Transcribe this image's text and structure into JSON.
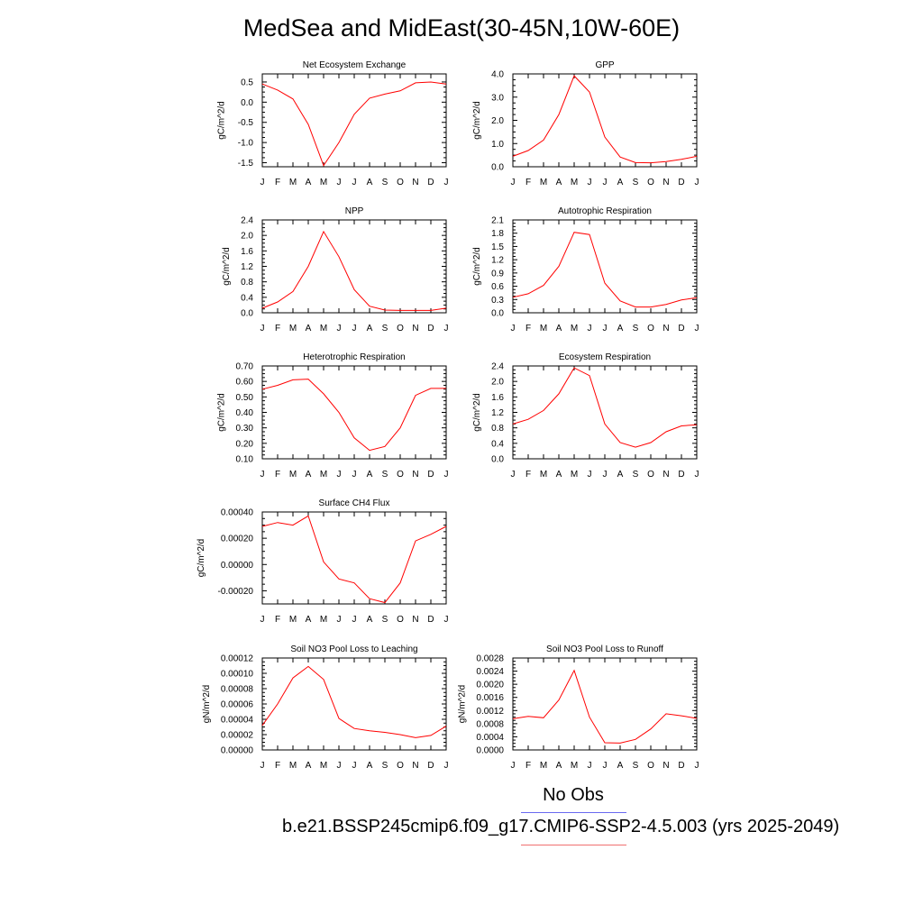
{
  "title": "MedSea and MidEast(30-45N,10W-60E)",
  "legend": {
    "obs_label": "No Obs",
    "obs_color": "#6a6af0",
    "model_label": "b.e21.BSSP245cmip6.f09_g17.CMIP6-SSP2-4.5.003 (yrs 2025-2049)",
    "model_color": "#f07070"
  },
  "chart_data": [
    {
      "type": "line",
      "title": "Net Ecosystem Exchange",
      "ylabel": "gC/m^2/d",
      "categories": [
        "J",
        "F",
        "M",
        "A",
        "M",
        "J",
        "J",
        "A",
        "S",
        "O",
        "N",
        "D",
        "J"
      ],
      "ylim": [
        -1.6,
        0.7
      ],
      "yticks": [
        -1.5,
        -1.0,
        -0.5,
        0.0,
        0.5
      ],
      "ytick_labels": [
        "-1.5",
        "-1.0",
        "-0.5",
        "0.0",
        "0.5"
      ],
      "series": [
        {
          "values": [
            0.45,
            0.3,
            0.08,
            -0.55,
            -1.57,
            -1.0,
            -0.3,
            0.1,
            0.2,
            0.28,
            0.48,
            0.5,
            0.45
          ],
          "color": "#ff0000"
        }
      ]
    },
    {
      "type": "line",
      "title": "GPP",
      "ylabel": "gC/m^2/d",
      "categories": [
        "J",
        "F",
        "M",
        "A",
        "M",
        "J",
        "J",
        "A",
        "S",
        "O",
        "N",
        "D",
        "J"
      ],
      "ylim": [
        0.0,
        4.0
      ],
      "yticks": [
        0.0,
        1.0,
        2.0,
        3.0,
        4.0
      ],
      "ytick_labels": [
        "0.0",
        "1.0",
        "2.0",
        "3.0",
        "4.0"
      ],
      "series": [
        {
          "values": [
            0.45,
            0.7,
            1.15,
            2.25,
            3.92,
            3.22,
            1.28,
            0.42,
            0.18,
            0.17,
            0.22,
            0.32,
            0.45
          ],
          "color": "#ff0000"
        }
      ]
    },
    {
      "type": "line",
      "title": "NPP",
      "ylabel": "gC/m^2/d",
      "categories": [
        "J",
        "F",
        "M",
        "A",
        "M",
        "J",
        "J",
        "A",
        "S",
        "O",
        "N",
        "D",
        "J"
      ],
      "ylim": [
        0.0,
        2.4
      ],
      "yticks": [
        0.0,
        0.4,
        0.8,
        1.2,
        1.6,
        2.0,
        2.4
      ],
      "ytick_labels": [
        "0.0",
        "0.4",
        "0.8",
        "1.2",
        "1.6",
        "2.0",
        "2.4"
      ],
      "series": [
        {
          "values": [
            0.12,
            0.28,
            0.55,
            1.2,
            2.1,
            1.45,
            0.6,
            0.17,
            0.07,
            0.06,
            0.06,
            0.06,
            0.12
          ],
          "color": "#ff0000"
        }
      ]
    },
    {
      "type": "line",
      "title": "Autotrophic Respiration",
      "ylabel": "gC/m^2/d",
      "categories": [
        "J",
        "F",
        "M",
        "A",
        "M",
        "J",
        "J",
        "A",
        "S",
        "O",
        "N",
        "D",
        "J"
      ],
      "ylim": [
        0.0,
        2.1
      ],
      "yticks": [
        0.0,
        0.3,
        0.6,
        0.9,
        1.2,
        1.5,
        1.8,
        2.1
      ],
      "ytick_labels": [
        "0.0",
        "0.3",
        "0.6",
        "0.9",
        "1.2",
        "1.5",
        "1.8",
        "2.1"
      ],
      "series": [
        {
          "values": [
            0.35,
            0.43,
            0.62,
            1.05,
            1.82,
            1.77,
            0.67,
            0.27,
            0.13,
            0.13,
            0.19,
            0.29,
            0.34
          ],
          "color": "#ff0000"
        }
      ]
    },
    {
      "type": "line",
      "title": "Heterotrophic Respiration",
      "ylabel": "gC/m^2/d",
      "categories": [
        "J",
        "F",
        "M",
        "A",
        "M",
        "J",
        "J",
        "A",
        "S",
        "O",
        "N",
        "D",
        "J"
      ],
      "ylim": [
        0.1,
        0.7
      ],
      "yticks": [
        0.1,
        0.2,
        0.3,
        0.4,
        0.5,
        0.6,
        0.7
      ],
      "ytick_labels": [
        "0.10",
        "0.20",
        "0.30",
        "0.40",
        "0.50",
        "0.60",
        "0.70"
      ],
      "series": [
        {
          "values": [
            0.55,
            0.575,
            0.61,
            0.615,
            0.52,
            0.4,
            0.235,
            0.155,
            0.18,
            0.3,
            0.51,
            0.555,
            0.555
          ],
          "color": "#ff0000"
        }
      ]
    },
    {
      "type": "line",
      "title": "Ecosystem Respiration",
      "ylabel": "gC/m^2/d",
      "categories": [
        "J",
        "F",
        "M",
        "A",
        "M",
        "J",
        "J",
        "A",
        "S",
        "O",
        "N",
        "D",
        "J"
      ],
      "ylim": [
        0.0,
        2.4
      ],
      "yticks": [
        0.0,
        0.4,
        0.8,
        1.2,
        1.6,
        2.0,
        2.4
      ],
      "ytick_labels": [
        "0.0",
        "0.4",
        "0.8",
        "1.2",
        "1.6",
        "2.0",
        "2.4"
      ],
      "series": [
        {
          "values": [
            0.9,
            1.02,
            1.25,
            1.68,
            2.35,
            2.15,
            0.9,
            0.42,
            0.3,
            0.42,
            0.7,
            0.85,
            0.88
          ],
          "color": "#ff0000"
        }
      ]
    },
    {
      "type": "line",
      "title": "Surface CH4 Flux",
      "ylabel": "gC/m^2/d",
      "categories": [
        "J",
        "F",
        "M",
        "A",
        "M",
        "J",
        "J",
        "A",
        "S",
        "O",
        "N",
        "D",
        "J"
      ],
      "ylim": [
        -0.0003,
        0.0004
      ],
      "yticks": [
        -0.0002,
        0.0,
        0.0002,
        0.0004
      ],
      "ytick_labels": [
        "-0.00020",
        "0.00000",
        "0.00020",
        "0.00040"
      ],
      "series": [
        {
          "values": [
            0.00029,
            0.00032,
            0.0003,
            0.00037,
            2e-05,
            -0.00011,
            -0.00014,
            -0.00026,
            -0.00029,
            -0.00014,
            0.00018,
            0.00023,
            0.00029
          ],
          "color": "#ff0000"
        }
      ]
    },
    {
      "type": "line",
      "title": "Soil NO3 Pool Loss to Leaching",
      "ylabel": "gN/m^2/d",
      "categories": [
        "J",
        "F",
        "M",
        "A",
        "M",
        "J",
        "J",
        "A",
        "S",
        "O",
        "N",
        "D",
        "J"
      ],
      "ylim": [
        0.0,
        0.00012
      ],
      "yticks": [
        0.0,
        2e-05,
        4e-05,
        6e-05,
        8e-05,
        0.0001,
        0.00012
      ],
      "ytick_labels": [
        "0.00000",
        "0.00002",
        "0.00004",
        "0.00006",
        "0.00008",
        "0.00010",
        "0.00012"
      ],
      "series": [
        {
          "values": [
            3.2e-05,
            6e-05,
            9.4e-05,
            0.000109,
            9.2e-05,
            4.1e-05,
            2.8e-05,
            2.5e-05,
            2.3e-05,
            2e-05,
            1.6e-05,
            1.9e-05,
            3.1e-05
          ],
          "color": "#ff0000"
        }
      ]
    },
    {
      "type": "line",
      "title": "Soil NO3 Pool Loss to Runoff",
      "ylabel": "gN/m^2/d",
      "categories": [
        "J",
        "F",
        "M",
        "A",
        "M",
        "J",
        "J",
        "A",
        "S",
        "O",
        "N",
        "D",
        "J"
      ],
      "ylim": [
        0.0,
        0.0028
      ],
      "yticks": [
        0.0,
        0.0004,
        0.0008,
        0.0012,
        0.0016,
        0.002,
        0.0024,
        0.0028
      ],
      "ytick_labels": [
        "0.0000",
        "0.0004",
        "0.0008",
        "0.0012",
        "0.0016",
        "0.0020",
        "0.0024",
        "0.0028"
      ],
      "series": [
        {
          "values": [
            0.00095,
            0.00102,
            0.00098,
            0.00152,
            0.00242,
            0.001,
            0.00022,
            0.00021,
            0.00032,
            0.00064,
            0.0011,
            0.00104,
            0.00096
          ],
          "color": "#ff0000"
        }
      ]
    }
  ]
}
